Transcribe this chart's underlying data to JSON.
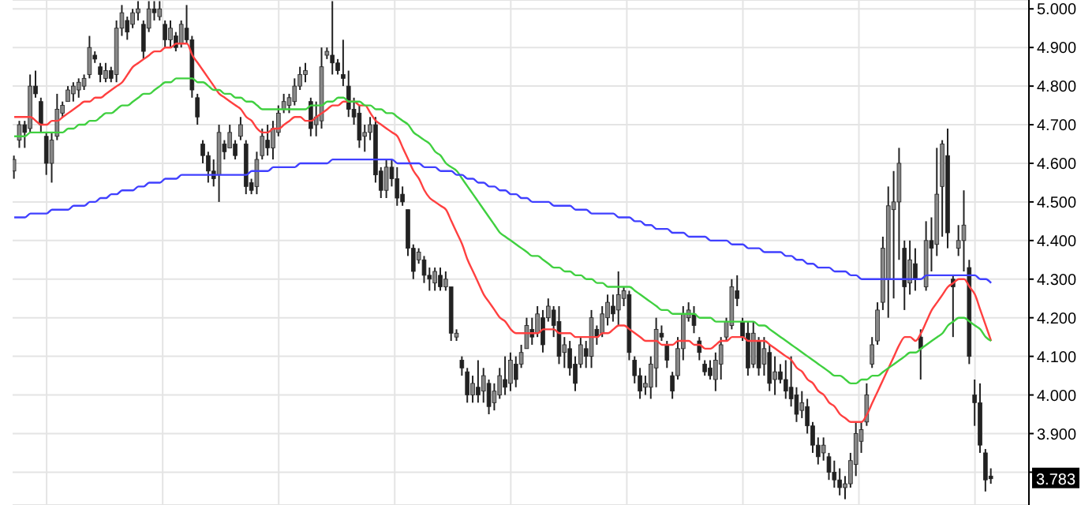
{
  "chart_data": {
    "type": "candlestick",
    "color": "#222222",
    "grid": true,
    "categories": [
      null,
      null,
      null,
      null,
      null,
      null,
      null,
      null,
      null,
      null,
      null,
      null,
      null,
      null,
      null,
      null,
      null,
      null,
      null,
      null,
      null,
      null,
      null,
      null,
      null,
      null,
      null,
      null,
      null,
      null,
      null,
      null,
      null,
      null,
      null,
      null,
      null,
      null,
      null,
      null,
      null,
      null,
      null,
      null,
      null,
      null,
      null,
      null,
      null,
      null,
      null,
      null,
      null,
      null,
      null,
      null,
      null,
      null,
      null,
      null,
      null,
      null,
      null,
      null,
      null,
      null,
      null,
      null,
      null,
      null,
      null,
      null,
      null,
      null,
      null,
      null,
      null,
      null,
      null,
      null,
      null,
      null,
      null,
      null,
      null,
      null,
      null,
      null,
      null,
      null,
      null,
      null,
      null,
      null,
      null,
      null,
      null,
      null,
      null,
      null,
      null,
      null,
      null,
      null,
      null,
      null,
      null,
      null,
      null,
      null,
      null,
      null,
      null,
      null,
      null,
      null,
      null,
      null,
      null,
      null,
      null,
      null,
      null,
      null,
      null,
      null,
      null,
      null,
      null,
      null,
      null,
      null,
      null,
      null,
      null,
      null,
      null,
      null,
      null,
      null,
      null,
      null,
      null,
      null,
      null,
      null,
      null,
      null,
      null,
      null,
      null,
      null,
      null,
      null,
      null,
      null,
      null,
      null,
      null,
      null,
      null,
      null,
      null,
      null,
      null,
      null,
      null,
      null,
      null,
      null,
      null,
      null,
      null,
      null,
      null,
      null,
      null,
      null,
      null,
      null,
      null,
      null
    ],
    "ohlc": [
      [
        4.58,
        4.62,
        4.56,
        4.61
      ],
      [
        4.66,
        4.71,
        4.64,
        4.7
      ],
      [
        4.7,
        4.71,
        4.64,
        4.68
      ],
      [
        4.69,
        4.83,
        4.68,
        4.8
      ],
      [
        4.8,
        4.84,
        4.77,
        4.78
      ],
      [
        4.76,
        4.77,
        4.68,
        4.7
      ],
      [
        4.67,
        4.68,
        4.57,
        4.6
      ],
      [
        4.6,
        4.68,
        4.55,
        4.66
      ],
      [
        4.67,
        4.78,
        4.66,
        4.74
      ],
      [
        4.73,
        4.76,
        4.72,
        4.75
      ],
      [
        4.76,
        4.8,
        4.76,
        4.79
      ],
      [
        4.78,
        4.81,
        4.76,
        4.8
      ],
      [
        4.79,
        4.82,
        4.77,
        4.81
      ],
      [
        4.8,
        4.83,
        4.79,
        4.82
      ],
      [
        4.83,
        4.93,
        4.82,
        4.9
      ],
      [
        4.88,
        4.89,
        4.86,
        4.87
      ],
      [
        4.85,
        4.86,
        4.81,
        4.83
      ],
      [
        4.82,
        4.86,
        4.81,
        4.84
      ],
      [
        4.84,
        4.85,
        4.81,
        4.82
      ],
      [
        4.83,
        4.97,
        4.81,
        4.95
      ],
      [
        4.95,
        5.01,
        4.93,
        4.99
      ],
      [
        4.97,
        4.98,
        4.92,
        4.94
      ],
      [
        4.96,
        5.0,
        4.95,
        4.99
      ],
      [
        4.99,
        5.02,
        4.97,
        5.0
      ],
      [
        4.96,
        4.97,
        4.87,
        4.89
      ],
      [
        4.95,
        5.02,
        4.94,
        5.0
      ],
      [
        5.0,
        5.02,
        4.97,
        4.99
      ],
      [
        4.98,
        5.02,
        4.97,
        5.0
      ],
      [
        4.96,
        4.97,
        4.9,
        4.92
      ],
      [
        4.92,
        4.97,
        4.9,
        4.95
      ],
      [
        4.93,
        4.94,
        4.89,
        4.9
      ],
      [
        4.91,
        4.97,
        4.9,
        4.96
      ],
      [
        4.95,
        5.01,
        4.91,
        4.92
      ],
      [
        4.92,
        4.93,
        4.77,
        4.79
      ],
      [
        4.77,
        4.78,
        4.7,
        4.72
      ],
      [
        4.65,
        4.66,
        4.6,
        4.62
      ],
      [
        4.62,
        4.63,
        4.55,
        4.58
      ],
      [
        4.58,
        4.61,
        4.54,
        4.56
      ],
      [
        4.57,
        4.7,
        4.5,
        4.68
      ],
      [
        4.65,
        4.66,
        4.61,
        4.63
      ],
      [
        4.64,
        4.7,
        4.64,
        4.68
      ],
      [
        4.65,
        4.66,
        4.61,
        4.62
      ],
      [
        4.67,
        4.72,
        4.66,
        4.7
      ],
      [
        4.65,
        4.66,
        4.52,
        4.54
      ],
      [
        4.55,
        4.56,
        4.52,
        4.53
      ],
      [
        4.54,
        4.63,
        4.52,
        4.61
      ],
      [
        4.62,
        4.69,
        4.61,
        4.67
      ],
      [
        4.66,
        4.7,
        4.62,
        4.64
      ],
      [
        4.64,
        4.71,
        4.61,
        4.69
      ],
      [
        4.68,
        4.75,
        4.67,
        4.73
      ],
      [
        4.74,
        4.78,
        4.73,
        4.76
      ],
      [
        4.75,
        4.78,
        4.73,
        4.77
      ],
      [
        4.76,
        4.82,
        4.75,
        4.8
      ],
      [
        4.8,
        4.85,
        4.79,
        4.83
      ],
      [
        4.83,
        4.86,
        4.81,
        4.84
      ],
      [
        4.76,
        4.77,
        4.67,
        4.69
      ],
      [
        4.7,
        4.76,
        4.67,
        4.72
      ],
      [
        4.71,
        4.9,
        4.69,
        4.85
      ],
      [
        4.88,
        4.9,
        4.87,
        4.89
      ],
      [
        4.88,
        5.02,
        4.83,
        4.86
      ],
      [
        4.86,
        4.87,
        4.83,
        4.84
      ],
      [
        4.83,
        4.92,
        4.8,
        4.82
      ],
      [
        4.8,
        4.84,
        4.72,
        4.74
      ],
      [
        4.74,
        4.77,
        4.7,
        4.72
      ],
      [
        4.73,
        4.75,
        4.64,
        4.66
      ],
      [
        4.67,
        4.7,
        4.63,
        4.68
      ],
      [
        4.68,
        4.72,
        4.66,
        4.7
      ],
      [
        4.7,
        4.72,
        4.55,
        4.57
      ],
      [
        4.58,
        4.59,
        4.51,
        4.53
      ],
      [
        4.53,
        4.61,
        4.51,
        4.59
      ],
      [
        4.59,
        4.61,
        4.54,
        4.56
      ],
      [
        4.56,
        4.59,
        4.49,
        4.51
      ],
      [
        4.52,
        4.54,
        4.49,
        4.5
      ],
      [
        4.48,
        4.48,
        4.36,
        4.38
      ],
      [
        4.38,
        4.39,
        4.3,
        4.32
      ],
      [
        4.35,
        4.38,
        4.34,
        4.37
      ],
      [
        4.35,
        4.36,
        4.29,
        4.31
      ],
      [
        4.31,
        4.33,
        4.27,
        4.3
      ],
      [
        4.29,
        4.33,
        4.27,
        4.32
      ],
      [
        4.31,
        4.33,
        4.27,
        4.28
      ],
      [
        4.28,
        4.32,
        4.27,
        4.3
      ],
      [
        4.28,
        4.28,
        4.14,
        4.16
      ],
      [
        4.15,
        4.17,
        4.14,
        4.16
      ],
      [
        4.09,
        4.1,
        4.05,
        4.07
      ],
      [
        4.06,
        4.07,
        3.98,
        4.0
      ],
      [
        4.0,
        4.05,
        3.98,
        4.03
      ],
      [
        4.02,
        4.09,
        3.98,
        4.0
      ],
      [
        4.01,
        4.07,
        3.98,
        4.05
      ],
      [
        4.03,
        4.04,
        3.95,
        3.97
      ],
      [
        3.98,
        4.03,
        3.96,
        4.01
      ],
      [
        4.0,
        4.07,
        3.99,
        4.05
      ],
      [
        4.04,
        4.1,
        4.0,
        4.02
      ],
      [
        4.03,
        4.11,
        4.01,
        4.09
      ],
      [
        4.08,
        4.1,
        4.02,
        4.04
      ],
      [
        4.08,
        4.13,
        4.07,
        4.11
      ],
      [
        4.12,
        4.2,
        4.12,
        4.18
      ],
      [
        4.17,
        4.2,
        4.13,
        4.15
      ],
      [
        4.16,
        4.23,
        4.15,
        4.21
      ],
      [
        4.2,
        4.22,
        4.11,
        4.13
      ],
      [
        4.2,
        4.25,
        4.19,
        4.23
      ],
      [
        4.22,
        4.23,
        4.15,
        4.18
      ],
      [
        4.19,
        4.23,
        4.08,
        4.1
      ],
      [
        4.11,
        4.15,
        4.07,
        4.13
      ],
      [
        4.12,
        4.14,
        4.05,
        4.07
      ],
      [
        4.08,
        4.1,
        4.01,
        4.03
      ],
      [
        4.08,
        4.15,
        4.07,
        4.13
      ],
      [
        4.12,
        4.14,
        4.07,
        4.1
      ],
      [
        4.1,
        4.22,
        4.07,
        4.2
      ],
      [
        4.17,
        4.18,
        4.13,
        4.15
      ],
      [
        4.16,
        4.23,
        4.15,
        4.21
      ],
      [
        4.2,
        4.26,
        4.18,
        4.24
      ],
      [
        4.23,
        4.26,
        4.19,
        4.21
      ],
      [
        4.22,
        4.32,
        4.18,
        4.26
      ],
      [
        4.25,
        4.28,
        4.23,
        4.27
      ],
      [
        4.26,
        4.27,
        4.09,
        4.11
      ],
      [
        4.09,
        4.1,
        4.03,
        4.05
      ],
      [
        4.05,
        4.07,
        3.99,
        4.01
      ],
      [
        4.02,
        4.05,
        4.0,
        4.03
      ],
      [
        4.02,
        4.1,
        3.99,
        4.08
      ],
      [
        4.07,
        4.2,
        4.02,
        4.17
      ],
      [
        4.16,
        4.18,
        4.14,
        4.15
      ],
      [
        4.13,
        4.14,
        4.07,
        4.09
      ],
      [
        4.05,
        4.06,
        3.99,
        4.01
      ],
      [
        4.05,
        4.15,
        4.04,
        4.12
      ],
      [
        4.12,
        4.23,
        4.09,
        4.21
      ],
      [
        4.2,
        4.24,
        4.19,
        4.22
      ],
      [
        4.21,
        4.23,
        4.16,
        4.18
      ],
      [
        4.14,
        4.15,
        4.09,
        4.11
      ],
      [
        4.08,
        4.09,
        4.05,
        4.06
      ],
      [
        4.07,
        4.09,
        4.04,
        4.05
      ],
      [
        4.04,
        4.11,
        4.01,
        4.09
      ],
      [
        4.08,
        4.15,
        4.04,
        4.13
      ],
      [
        4.15,
        4.2,
        4.14,
        4.19
      ],
      [
        4.18,
        4.3,
        4.17,
        4.28
      ],
      [
        4.27,
        4.31,
        4.23,
        4.25
      ],
      [
        4.19,
        4.2,
        4.14,
        4.15
      ],
      [
        4.16,
        4.19,
        4.05,
        4.07
      ],
      [
        4.08,
        4.19,
        4.07,
        4.16
      ],
      [
        4.14,
        4.15,
        4.05,
        4.07
      ],
      [
        4.08,
        4.15,
        4.05,
        4.12
      ],
      [
        4.11,
        4.13,
        4.01,
        4.03
      ],
      [
        4.04,
        4.1,
        4.0,
        4.06
      ],
      [
        4.06,
        4.08,
        4.03,
        4.04
      ],
      [
        4.04,
        4.09,
        3.99,
        4.01
      ],
      [
        4.02,
        4.1,
        3.97,
        3.99
      ],
      [
        4.0,
        4.02,
        3.93,
        3.95
      ],
      [
        3.96,
        4.01,
        3.94,
        3.98
      ],
      [
        3.97,
        3.99,
        3.9,
        3.92
      ],
      [
        3.92,
        3.93,
        3.85,
        3.87
      ],
      [
        3.87,
        3.89,
        3.82,
        3.84
      ],
      [
        3.85,
        3.89,
        3.83,
        3.87
      ],
      [
        3.84,
        3.85,
        3.78,
        3.8
      ],
      [
        3.8,
        3.83,
        3.76,
        3.78
      ],
      [
        3.78,
        3.81,
        3.74,
        3.76
      ],
      [
        3.76,
        3.79,
        3.73,
        3.77
      ],
      [
        3.77,
        3.85,
        3.76,
        3.83
      ],
      [
        3.82,
        3.93,
        3.79,
        3.9
      ],
      [
        3.88,
        3.93,
        3.85,
        3.91
      ],
      [
        3.93,
        4.03,
        3.92,
        4.0
      ],
      [
        4.08,
        4.15,
        4.07,
        4.13
      ],
      [
        4.14,
        4.24,
        4.13,
        4.22
      ],
      [
        4.24,
        4.41,
        4.22,
        4.38
      ],
      [
        4.3,
        4.54,
        4.2,
        4.49
      ],
      [
        4.48,
        4.58,
        4.25,
        4.5
      ],
      [
        4.5,
        4.64,
        4.35,
        4.6
      ],
      [
        4.38,
        4.4,
        4.22,
        4.28
      ],
      [
        4.29,
        4.4,
        4.26,
        4.35
      ],
      [
        4.34,
        4.38,
        4.27,
        4.3
      ],
      [
        4.15,
        4.17,
        4.04,
        4.12
      ],
      [
        4.28,
        4.45,
        4.27,
        4.4
      ],
      [
        4.4,
        4.46,
        4.32,
        4.38
      ],
      [
        4.39,
        4.64,
        4.36,
        4.52
      ],
      [
        4.54,
        4.66,
        4.41,
        4.65
      ],
      [
        4.62,
        4.69,
        4.38,
        4.42
      ],
      [
        4.3,
        4.31,
        4.15,
        4.28
      ],
      [
        4.38,
        4.44,
        4.36,
        4.4
      ],
      [
        4.4,
        4.53,
        4.32,
        4.44
      ],
      [
        4.33,
        4.35,
        4.08,
        4.1
      ],
      [
        4.0,
        4.04,
        3.92,
        3.98
      ],
      [
        3.98,
        4.03,
        3.85,
        3.87
      ],
      [
        3.85,
        3.86,
        3.75,
        3.78
      ],
      [
        3.79,
        3.81,
        3.77,
        3.783
      ]
    ],
    "series": [
      {
        "type": "line",
        "color": "#ff4040",
        "values": [
          4.72,
          4.72,
          4.72,
          4.72,
          4.71,
          4.7,
          4.7,
          4.71,
          4.71,
          4.72,
          4.73,
          4.74,
          4.75,
          4.76,
          4.76,
          4.77,
          4.77,
          4.78,
          4.79,
          4.8,
          4.81,
          4.83,
          4.85,
          4.86,
          4.87,
          4.88,
          4.89,
          4.89,
          4.9,
          4.9,
          4.91,
          4.91,
          4.91,
          4.88,
          4.86,
          4.84,
          4.82,
          4.8,
          4.78,
          4.77,
          4.76,
          4.75,
          4.74,
          4.72,
          4.71,
          4.69,
          4.68,
          4.68,
          4.69,
          4.69,
          4.7,
          4.71,
          4.72,
          4.72,
          4.71,
          4.71,
          4.72,
          4.73,
          4.74,
          4.75,
          4.75,
          4.76,
          4.76,
          4.76,
          4.75,
          4.75,
          4.73,
          4.71,
          4.7,
          4.69,
          4.68,
          4.67,
          4.64,
          4.61,
          4.58,
          4.56,
          4.53,
          4.51,
          4.5,
          4.49,
          4.48,
          4.45,
          4.42,
          4.39,
          4.35,
          4.32,
          4.29,
          4.26,
          4.24,
          4.22,
          4.2,
          4.19,
          4.17,
          4.16,
          4.16,
          4.16,
          4.16,
          4.16,
          4.17,
          4.17,
          4.17,
          4.16,
          4.16,
          4.16,
          4.15,
          4.15,
          4.15,
          4.15,
          4.15,
          4.16,
          4.16,
          4.17,
          4.18,
          4.18,
          4.17,
          4.16,
          4.15,
          4.14,
          4.14,
          4.14,
          4.13,
          4.13,
          4.13,
          4.14,
          4.14,
          4.14,
          4.13,
          4.13,
          4.12,
          4.12,
          4.13,
          4.14,
          4.14,
          4.15,
          4.15,
          4.15,
          4.14,
          4.14,
          4.14,
          4.14,
          4.13,
          4.12,
          4.11,
          4.1,
          4.09,
          4.07,
          4.06,
          4.04,
          4.03,
          4.01,
          4.0,
          3.98,
          3.97,
          3.95,
          3.94,
          3.93,
          3.93,
          3.93,
          3.95,
          3.98,
          4.01,
          4.04,
          4.07,
          4.1,
          4.13,
          4.15,
          4.15,
          4.14,
          4.16,
          4.19,
          4.22,
          4.24,
          4.26,
          4.28,
          4.29,
          4.3,
          4.3,
          4.28,
          4.26,
          4.22,
          4.18,
          4.14
        ]
      },
      {
        "type": "line",
        "color": "#40d040",
        "values": [
          4.67,
          4.67,
          4.67,
          4.68,
          4.68,
          4.68,
          4.68,
          4.68,
          4.68,
          4.68,
          4.69,
          4.69,
          4.7,
          4.7,
          4.71,
          4.71,
          4.72,
          4.73,
          4.73,
          4.74,
          4.75,
          4.75,
          4.76,
          4.77,
          4.78,
          4.78,
          4.79,
          4.8,
          4.81,
          4.81,
          4.82,
          4.82,
          4.82,
          4.82,
          4.81,
          4.81,
          4.8,
          4.79,
          4.79,
          4.78,
          4.78,
          4.77,
          4.77,
          4.76,
          4.76,
          4.75,
          4.74,
          4.74,
          4.74,
          4.74,
          4.74,
          4.74,
          4.74,
          4.74,
          4.74,
          4.75,
          4.75,
          4.75,
          4.76,
          4.76,
          4.77,
          4.77,
          4.76,
          4.76,
          4.76,
          4.75,
          4.75,
          4.74,
          4.74,
          4.73,
          4.73,
          4.72,
          4.71,
          4.7,
          4.68,
          4.67,
          4.66,
          4.65,
          4.63,
          4.62,
          4.6,
          4.59,
          4.58,
          4.56,
          4.54,
          4.52,
          4.5,
          4.48,
          4.46,
          4.44,
          4.42,
          4.41,
          4.4,
          4.39,
          4.38,
          4.37,
          4.36,
          4.36,
          4.35,
          4.34,
          4.33,
          4.33,
          4.32,
          4.32,
          4.31,
          4.31,
          4.3,
          4.3,
          4.29,
          4.29,
          4.28,
          4.28,
          4.28,
          4.28,
          4.28,
          4.27,
          4.26,
          4.25,
          4.24,
          4.23,
          4.22,
          4.22,
          4.21,
          4.21,
          4.21,
          4.21,
          4.21,
          4.2,
          4.2,
          4.2,
          4.19,
          4.19,
          4.19,
          4.19,
          4.19,
          4.19,
          4.19,
          4.19,
          4.18,
          4.18,
          4.17,
          4.16,
          4.15,
          4.14,
          4.13,
          4.12,
          4.11,
          4.1,
          4.09,
          4.08,
          4.07,
          4.06,
          4.05,
          4.05,
          4.04,
          4.03,
          4.03,
          4.04,
          4.04,
          4.05,
          4.05,
          4.06,
          4.07,
          4.08,
          4.09,
          4.1,
          4.11,
          4.11,
          4.12,
          4.13,
          4.14,
          4.15,
          4.16,
          4.18,
          4.19,
          4.2,
          4.2,
          4.19,
          4.18,
          4.17,
          4.15,
          4.14
        ]
      },
      {
        "type": "line",
        "color": "#4040ff",
        "values": [
          4.46,
          4.46,
          4.46,
          4.47,
          4.47,
          4.47,
          4.47,
          4.48,
          4.48,
          4.48,
          4.48,
          4.49,
          4.49,
          4.49,
          4.5,
          4.5,
          4.51,
          4.51,
          4.52,
          4.52,
          4.53,
          4.53,
          4.53,
          4.54,
          4.54,
          4.55,
          4.55,
          4.55,
          4.56,
          4.56,
          4.56,
          4.57,
          4.57,
          4.57,
          4.57,
          4.57,
          4.57,
          4.57,
          4.57,
          4.57,
          4.57,
          4.57,
          4.57,
          4.57,
          4.58,
          4.58,
          4.58,
          4.58,
          4.59,
          4.59,
          4.59,
          4.59,
          4.59,
          4.6,
          4.6,
          4.6,
          4.6,
          4.6,
          4.6,
          4.61,
          4.61,
          4.61,
          4.61,
          4.61,
          4.61,
          4.61,
          4.61,
          4.61,
          4.61,
          4.61,
          4.61,
          4.6,
          4.6,
          4.6,
          4.6,
          4.6,
          4.59,
          4.59,
          4.59,
          4.58,
          4.58,
          4.58,
          4.57,
          4.57,
          4.56,
          4.56,
          4.55,
          4.55,
          4.54,
          4.54,
          4.53,
          4.53,
          4.52,
          4.52,
          4.51,
          4.51,
          4.5,
          4.5,
          4.5,
          4.5,
          4.49,
          4.49,
          4.49,
          4.49,
          4.48,
          4.48,
          4.48,
          4.47,
          4.47,
          4.47,
          4.47,
          4.47,
          4.46,
          4.46,
          4.46,
          4.45,
          4.45,
          4.44,
          4.44,
          4.43,
          4.43,
          4.43,
          4.42,
          4.42,
          4.42,
          4.41,
          4.41,
          4.41,
          4.41,
          4.4,
          4.4,
          4.4,
          4.4,
          4.39,
          4.39,
          4.39,
          4.38,
          4.38,
          4.38,
          4.37,
          4.37,
          4.37,
          4.37,
          4.36,
          4.36,
          4.35,
          4.35,
          4.34,
          4.34,
          4.33,
          4.33,
          4.33,
          4.32,
          4.32,
          4.32,
          4.31,
          4.31,
          4.3,
          4.3,
          4.3,
          4.3,
          4.3,
          4.3,
          4.3,
          4.3,
          4.3,
          4.3,
          4.3,
          4.3,
          4.31,
          4.31,
          4.31,
          4.31,
          4.31,
          4.31,
          4.31,
          4.31,
          4.31,
          4.31,
          4.3,
          4.3,
          4.29
        ]
      }
    ],
    "ylim": [
      3.715,
      5.023
    ],
    "yticks": [
      {
        "value": 3.8,
        "label": null
      },
      {
        "value": 3.9,
        "label": "3.900"
      },
      {
        "value": 4.0,
        "label": "4.000"
      },
      {
        "value": 4.1,
        "label": "4.100"
      },
      {
        "value": 4.2,
        "label": "4.200"
      },
      {
        "value": 4.3,
        "label": "4.300"
      },
      {
        "value": 4.4,
        "label": "4.400"
      },
      {
        "value": 4.5,
        "label": "4.500"
      },
      {
        "value": 4.6,
        "label": "4.600"
      },
      {
        "value": 4.7,
        "label": "4.700"
      },
      {
        "value": 4.8,
        "label": "4.800"
      },
      {
        "value": 4.9,
        "label": "4.900"
      },
      {
        "value": 5.0,
        "label": "5.000"
      }
    ],
    "annotations": [
      "3.783"
    ]
  }
}
